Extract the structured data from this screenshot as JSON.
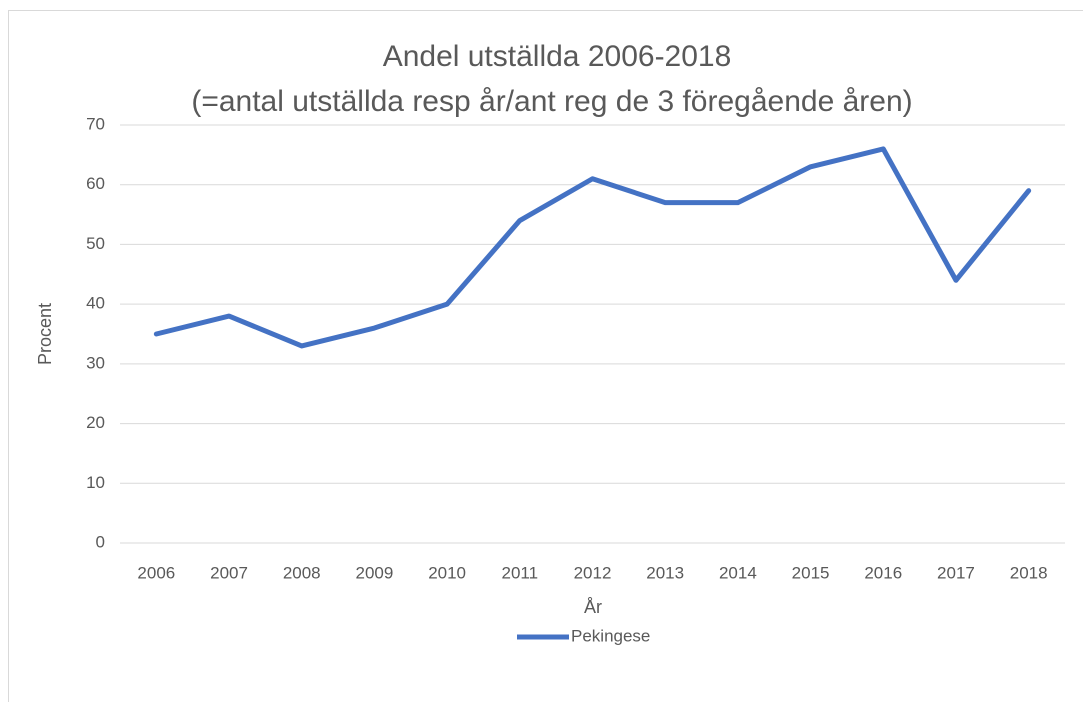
{
  "chart_data": {
    "type": "line",
    "title": "Andel utställda 2006-2018",
    "subtitle": "(=antal utställda resp år/ant reg de 3 föregående åren)",
    "x_label": "År",
    "y_label": "Procent",
    "categories": [
      "2006",
      "2007",
      "2008",
      "2009",
      "2010",
      "2011",
      "2012",
      "2013",
      "2014",
      "2015",
      "2016",
      "2017",
      "2018"
    ],
    "series": [
      {
        "name": "Pekingese",
        "color": "#4472c4",
        "values": [
          35,
          38,
          33,
          36,
          40,
          54,
          61,
          57,
          57,
          63,
          66,
          44,
          59
        ]
      }
    ],
    "ylim": [
      0,
      70
    ],
    "yticks": [
      0,
      10,
      20,
      30,
      40,
      50,
      60,
      70
    ],
    "grid": true,
    "legend": "bottom"
  }
}
